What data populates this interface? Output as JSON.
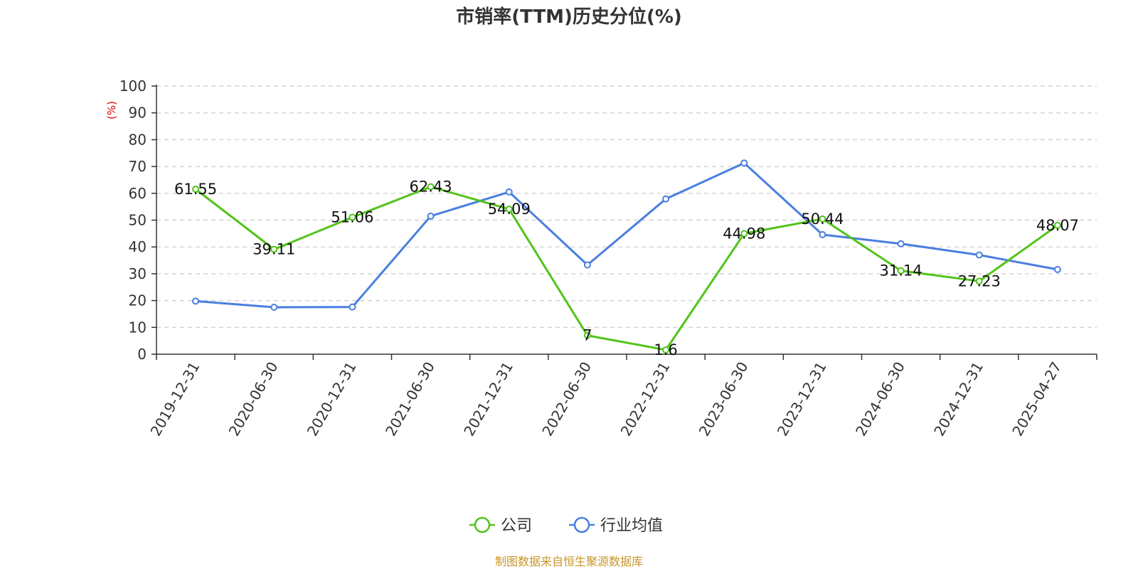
{
  "chart_data": {
    "type": "line",
    "title": "市销率(TTM)历史分位(%)",
    "ylabel": "(%)",
    "ylim": [
      0,
      100
    ],
    "yticks": [
      0,
      10,
      20,
      30,
      40,
      50,
      60,
      70,
      80,
      90,
      100
    ],
    "categories": [
      "2019-12-31",
      "2020-06-30",
      "2020-12-31",
      "2021-06-30",
      "2021-12-31",
      "2022-06-30",
      "2022-12-31",
      "2023-06-30",
      "2023-12-31",
      "2024-06-30",
      "2024-12-31",
      "2025-04-27"
    ],
    "series": [
      {
        "name": "公司",
        "color": "#52c41a",
        "values": [
          61.55,
          39.11,
          51.06,
          62.43,
          54.09,
          7,
          1.6,
          44.98,
          50.44,
          31.14,
          27.23,
          48.07
        ],
        "labels": [
          "61.55",
          "39.11",
          "51.06",
          "62.43",
          "54.09",
          "7",
          "1.6",
          "44.98",
          "50.44",
          "31.14",
          "27.23",
          "48.07"
        ]
      },
      {
        "name": "行业均值",
        "color": "#4a7fe0",
        "values": [
          19.8,
          17.5,
          17.6,
          51.5,
          60.5,
          33.3,
          57.9,
          71.3,
          44.6,
          41.2,
          37.0,
          31.6
        ]
      }
    ],
    "grid": true,
    "legend_position": "bottom-center",
    "source": "制图数据来自恒生聚源数据库"
  }
}
